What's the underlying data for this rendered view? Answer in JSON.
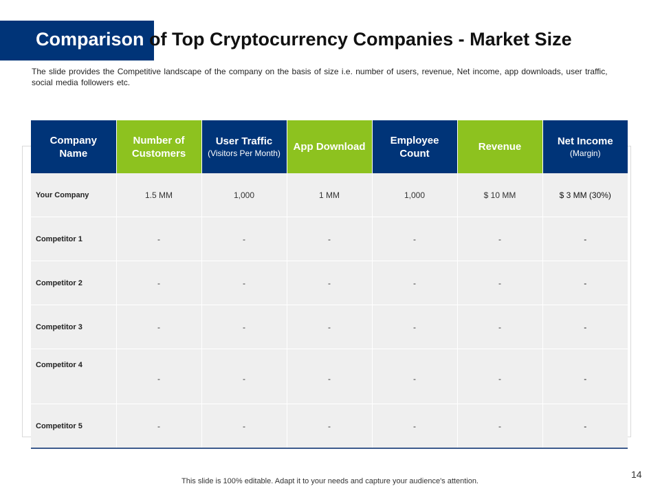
{
  "slide": {
    "title_highlight": "Comparison",
    "title_rest": " of Top Cryptocurrency Companies - Market Size",
    "subtitle": "The slide provides the Competitive landscape of the company on the basis of size i.e. number of users, revenue, Net income, app downloads, user traffic, social media followers etc.",
    "page_number": "14",
    "footer": "This slide is 100% editable. Adapt it to your needs and capture your audience's attention."
  },
  "colors": {
    "navy": "#003478",
    "green": "#8dc21f",
    "cell_bg": "#efefef"
  },
  "table": {
    "headers": [
      {
        "label": "Company Name",
        "sub": ""
      },
      {
        "label": "Number of Customers",
        "sub": ""
      },
      {
        "label": "User Traffic",
        "sub": "(Visitors Per Month)"
      },
      {
        "label": "App Download",
        "sub": ""
      },
      {
        "label": "Employee Count",
        "sub": ""
      },
      {
        "label": "Revenue",
        "sub": ""
      },
      {
        "label": "Net Income",
        "sub": "(Margin)"
      }
    ],
    "rows": [
      {
        "name": "Your Company",
        "values": [
          "1.5 MM",
          "1,000",
          "1 MM",
          "1,000",
          "$ 10 MM",
          "$ 3 MM (30%)"
        ]
      },
      {
        "name": "Competitor 1",
        "values": [
          "-",
          "-",
          "-",
          "-",
          "-",
          "-"
        ]
      },
      {
        "name": "Competitor 2",
        "values": [
          "-",
          "-",
          "-",
          "-",
          "-",
          "-"
        ]
      },
      {
        "name": "Competitor 3",
        "values": [
          "-",
          "-",
          "-",
          "-",
          "-",
          "-"
        ]
      },
      {
        "name": "Competitor 4",
        "values": [
          "-",
          "-",
          "-",
          "-",
          "-",
          "-"
        ]
      },
      {
        "name": "Competitor 5",
        "values": [
          "-",
          "-",
          "-",
          "-",
          "-",
          "-"
        ]
      }
    ]
  }
}
